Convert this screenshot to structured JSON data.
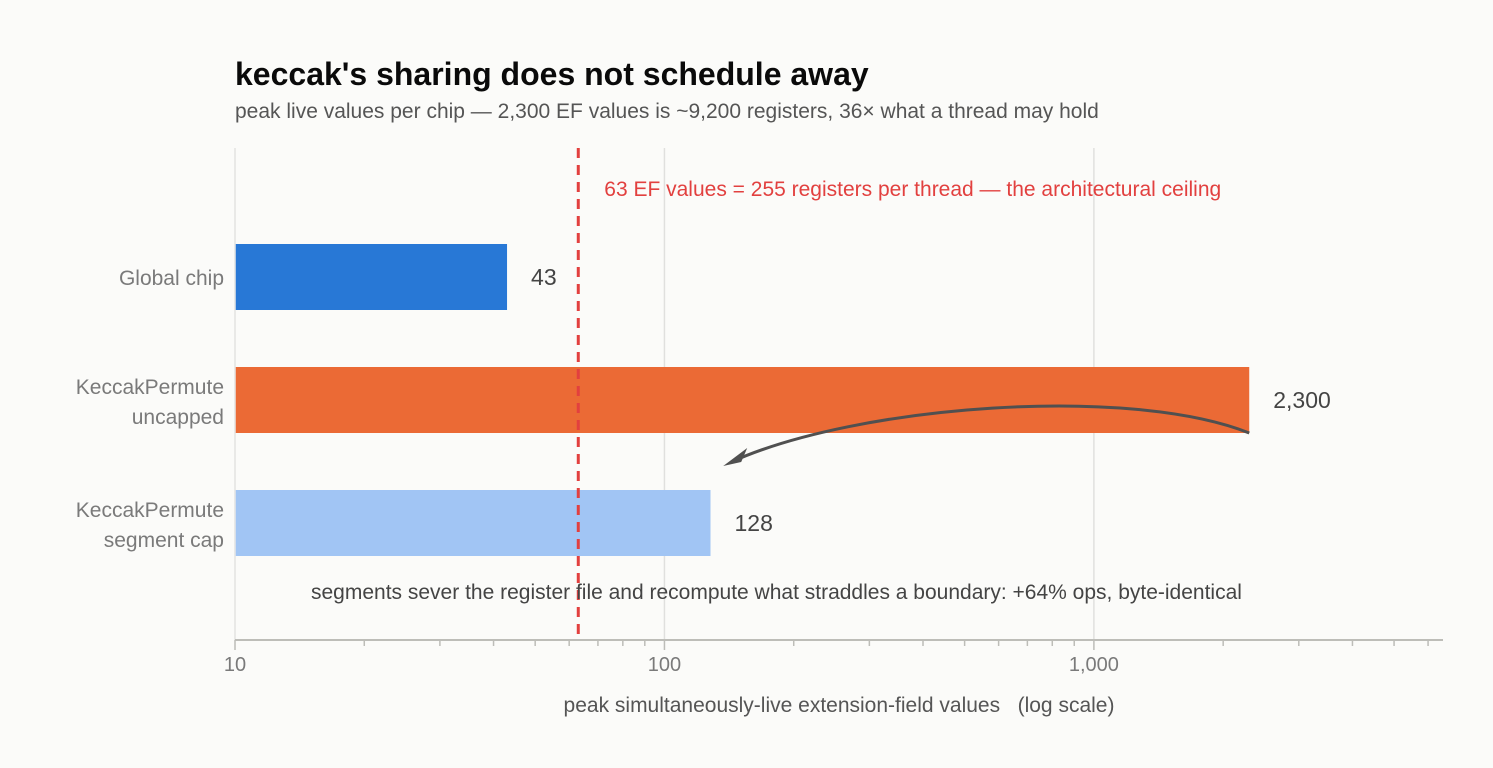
{
  "chart_data": {
    "type": "bar",
    "orientation": "horizontal",
    "title": "keccak's sharing does not schedule away",
    "subtitle": "peak live values per chip — 2,300 EF values is ~9,200 registers, 36× what a thread may hold",
    "xlabel": "peak simultaneously-live extension-field values   (log scale)",
    "ylabel": "",
    "xscale": "log",
    "xlim": [
      10,
      6500
    ],
    "xticks": [
      {
        "value": 10,
        "label": "10"
      },
      {
        "value": 100,
        "label": "100"
      },
      {
        "value": 1000,
        "label": "1,000"
      }
    ],
    "grid": true,
    "categories": [
      [
        "Global chip"
      ],
      [
        "KeccakPermute",
        "uncapped"
      ],
      [
        "KeccakPermute",
        "segment cap"
      ]
    ],
    "values": [
      43,
      2300,
      128
    ],
    "value_labels": [
      "43",
      "2,300",
      "128"
    ],
    "colors": [
      "#2878d6",
      "#eb6a35",
      "#a1c5f4"
    ],
    "reference_line": {
      "value": 63,
      "color": "#e2403f",
      "label": "63 EF values = 255 registers per thread — the architectural ceiling"
    },
    "annotation": {
      "text": "segments sever the register file and recompute what straddles a boundary:   +64% ops,  byte-identical",
      "arrow_from_value": 2300,
      "arrow_to_value": 140
    }
  }
}
